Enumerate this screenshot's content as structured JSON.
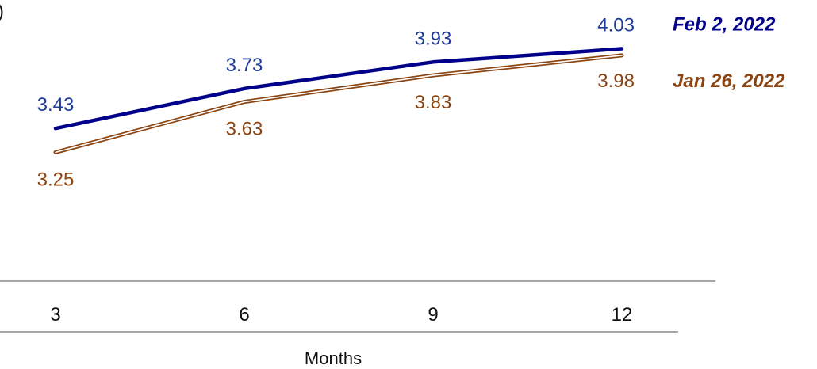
{
  "chart_data": {
    "type": "line",
    "x": [
      3,
      6,
      9,
      12
    ],
    "x_tick_labels": [
      "3",
      "6",
      "9",
      "12"
    ],
    "xlabel": "Months",
    "ylabel": "",
    "title": "",
    "ylim": [
      2.4,
      4.2
    ],
    "grid": false,
    "legend_placement": "right, inline at line ends",
    "fragment_glyph": ")",
    "series": [
      {
        "name": "Feb 2, 2022",
        "values": [
          3.43,
          3.73,
          3.93,
          4.03
        ],
        "labels": [
          "3.43",
          "3.73",
          "3.93",
          "4.03"
        ],
        "color": "#00008B",
        "label_color": "#1F3C9A",
        "style": "solid"
      },
      {
        "name": "Jan 26, 2022",
        "values": [
          3.25,
          3.63,
          3.83,
          3.98
        ],
        "labels": [
          "3.25",
          "3.63",
          "3.83",
          "3.98"
        ],
        "color": "#8B4513",
        "label_color": "#8B4513",
        "style": "double"
      }
    ]
  }
}
